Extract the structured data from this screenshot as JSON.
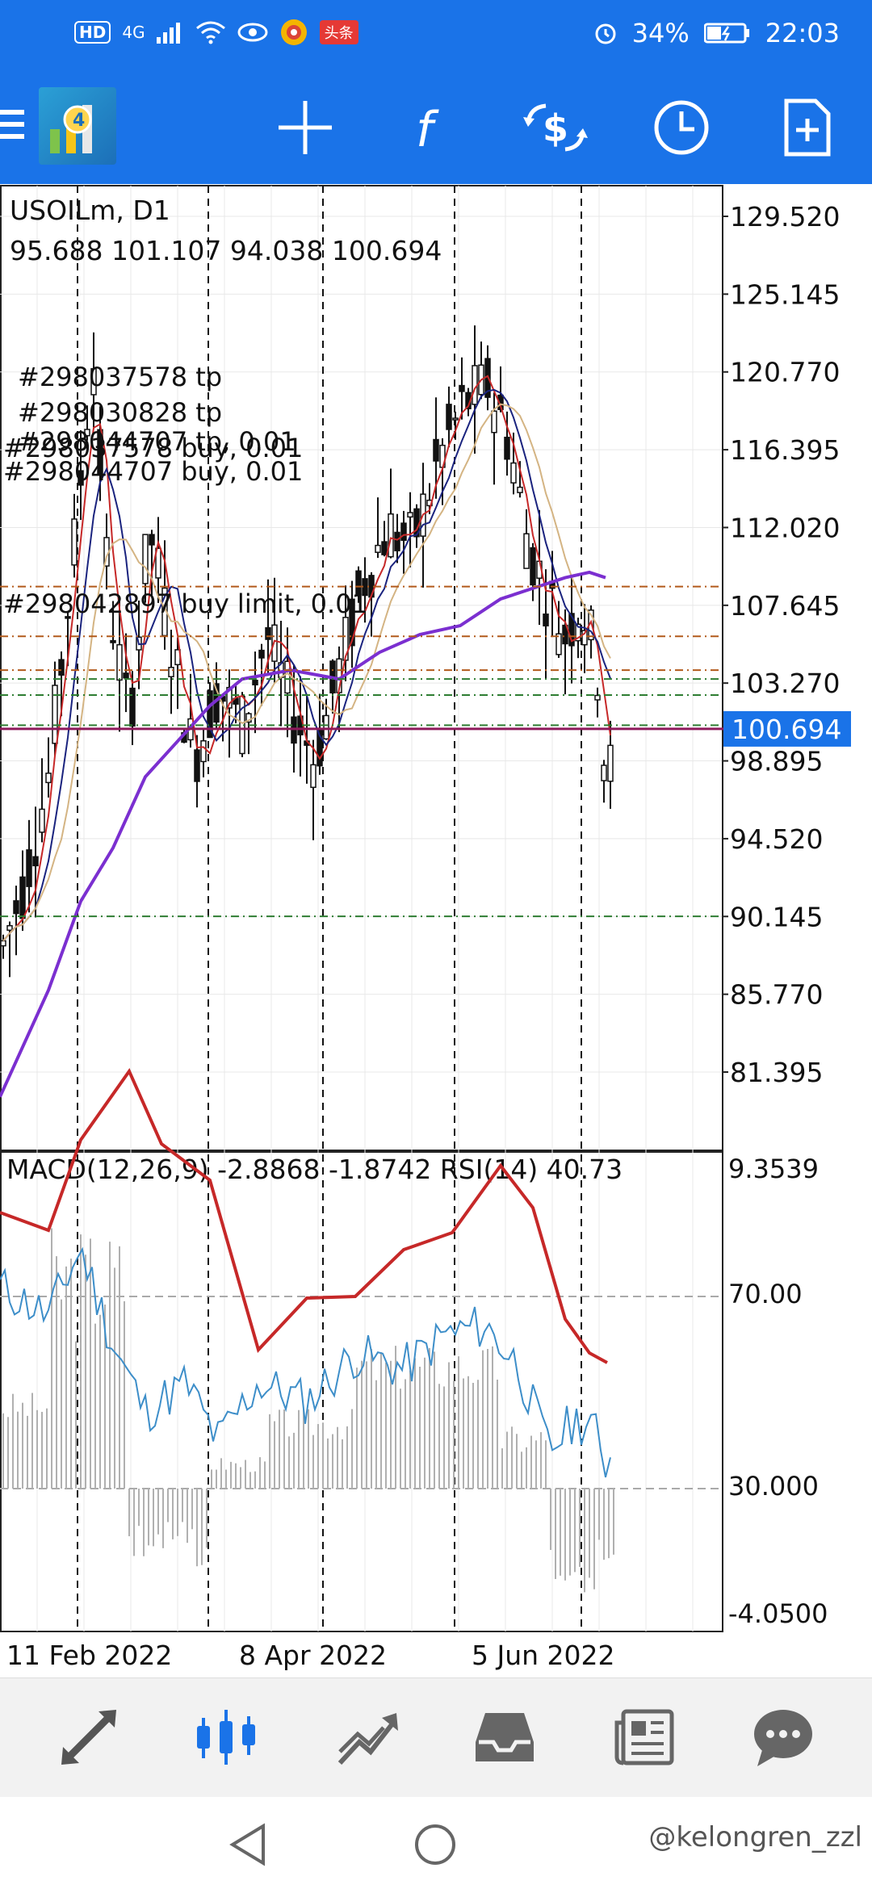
{
  "status_bar": {
    "hd": "HD",
    "signal": "4G",
    "news_badge": "头条",
    "battery": "34%",
    "time": "22:03"
  },
  "toolbar": {
    "icons": [
      "metatrader-logo-icon",
      "crosshair-icon",
      "indicators-icon",
      "trade-icon",
      "timeframe-clock-icon",
      "new-document-icon"
    ]
  },
  "chart": {
    "symbol_label": "USOILm, D1",
    "ohlc_label": "95.688 101.107 94.038 100.694",
    "current_price": "100.694",
    "price_axis": [
      "129.520",
      "125.145",
      "120.770",
      "116.395",
      "112.020",
      "107.645",
      "103.270",
      "98.895",
      "94.520",
      "90.145",
      "85.770",
      "81.395"
    ],
    "orders": [
      "#298037578 tp",
      "#298030828 tp",
      "#298044707 tp, 0.01",
      "#298037578 buy, 0.01",
      "#298044707 buy, 0.01",
      "#298042897 buy limit, 0.01"
    ],
    "indicator_label": "MACD(12,26,9) -2.8868 -1.8742 RSI(14) 40.73",
    "indicator_axis": [
      "9.3539",
      "70.00",
      "30.000",
      "-4.0500"
    ],
    "date_axis": [
      "11 Feb 2022",
      "8 Apr 2022",
      "5 Jun 2022"
    ],
    "colors": {
      "bg": "#ffffff",
      "candle": "#111111",
      "ma_fast": "#c62828",
      "ma_mid": "#1a237e",
      "ma_slow": "#d4b483",
      "ma_long": "#7b2fd0",
      "price_line": "#8e1a5b",
      "price_badge": "#1a73e8",
      "rsi": "#3d8ec9",
      "macd_signal": "#c62828",
      "macd_hist": "#b0b0b0"
    }
  },
  "bottom_nav": {
    "items": [
      "quotes-arrows-icon",
      "candlestick-chart-icon",
      "trade-chart-icon",
      "history-inbox-icon",
      "news-icon",
      "chat-icon"
    ]
  },
  "watermark": "@kelongren_zzl"
}
